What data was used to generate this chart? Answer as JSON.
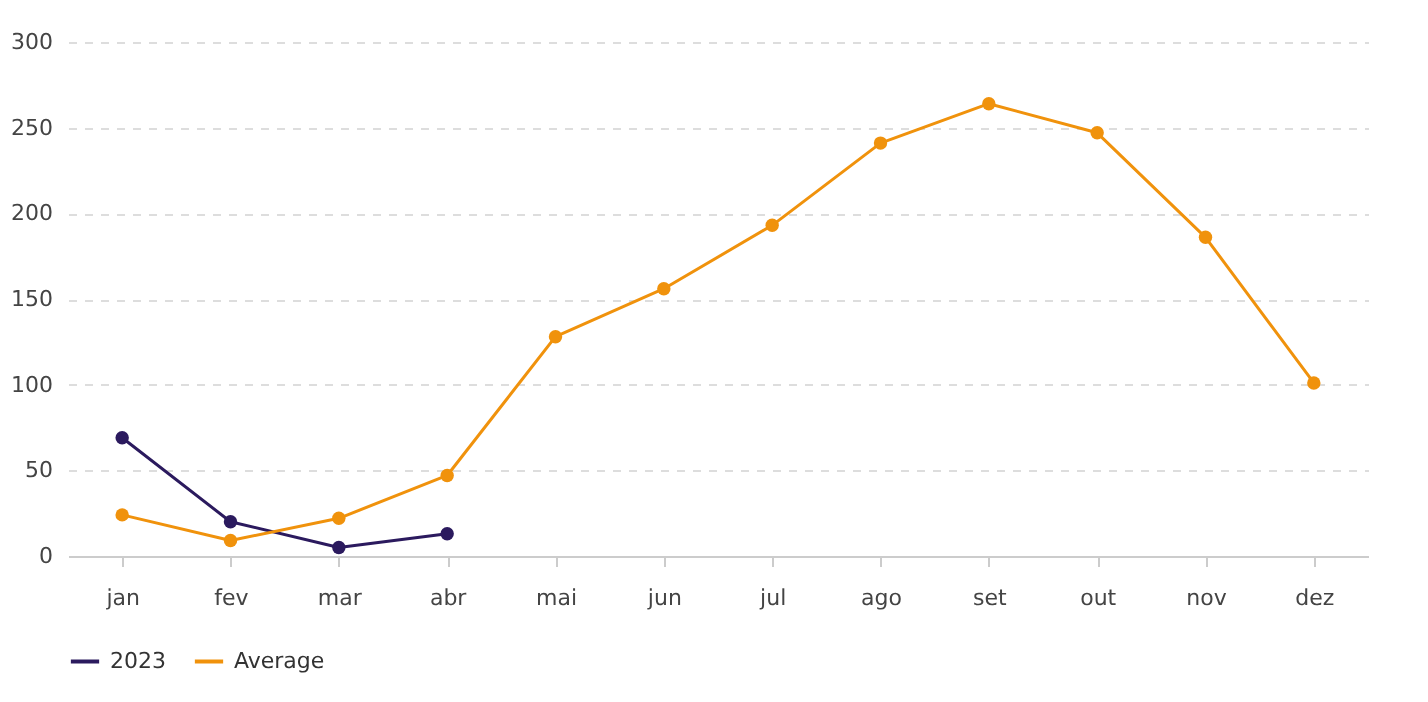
{
  "chart_data": {
    "type": "line",
    "categories": [
      "jan",
      "fev",
      "mar",
      "abr",
      "mai",
      "jun",
      "jul",
      "ago",
      "set",
      "out",
      "nov",
      "dez"
    ],
    "series": [
      {
        "name": "2023",
        "color": "#2b1a5e",
        "values": [
          69,
          20,
          5,
          13,
          null,
          null,
          null,
          null,
          null,
          null,
          null,
          null
        ]
      },
      {
        "name": "Average",
        "color": "#f0920c",
        "values": [
          24,
          9,
          22,
          47,
          128,
          156,
          193,
          241,
          264,
          247,
          186,
          101
        ]
      }
    ],
    "ylim": [
      0,
      300
    ],
    "yticks": [
      0,
      50,
      100,
      150,
      200,
      250,
      300
    ],
    "grid": "y",
    "legend": "bottom",
    "marker": "circle",
    "line_style": "solid"
  }
}
